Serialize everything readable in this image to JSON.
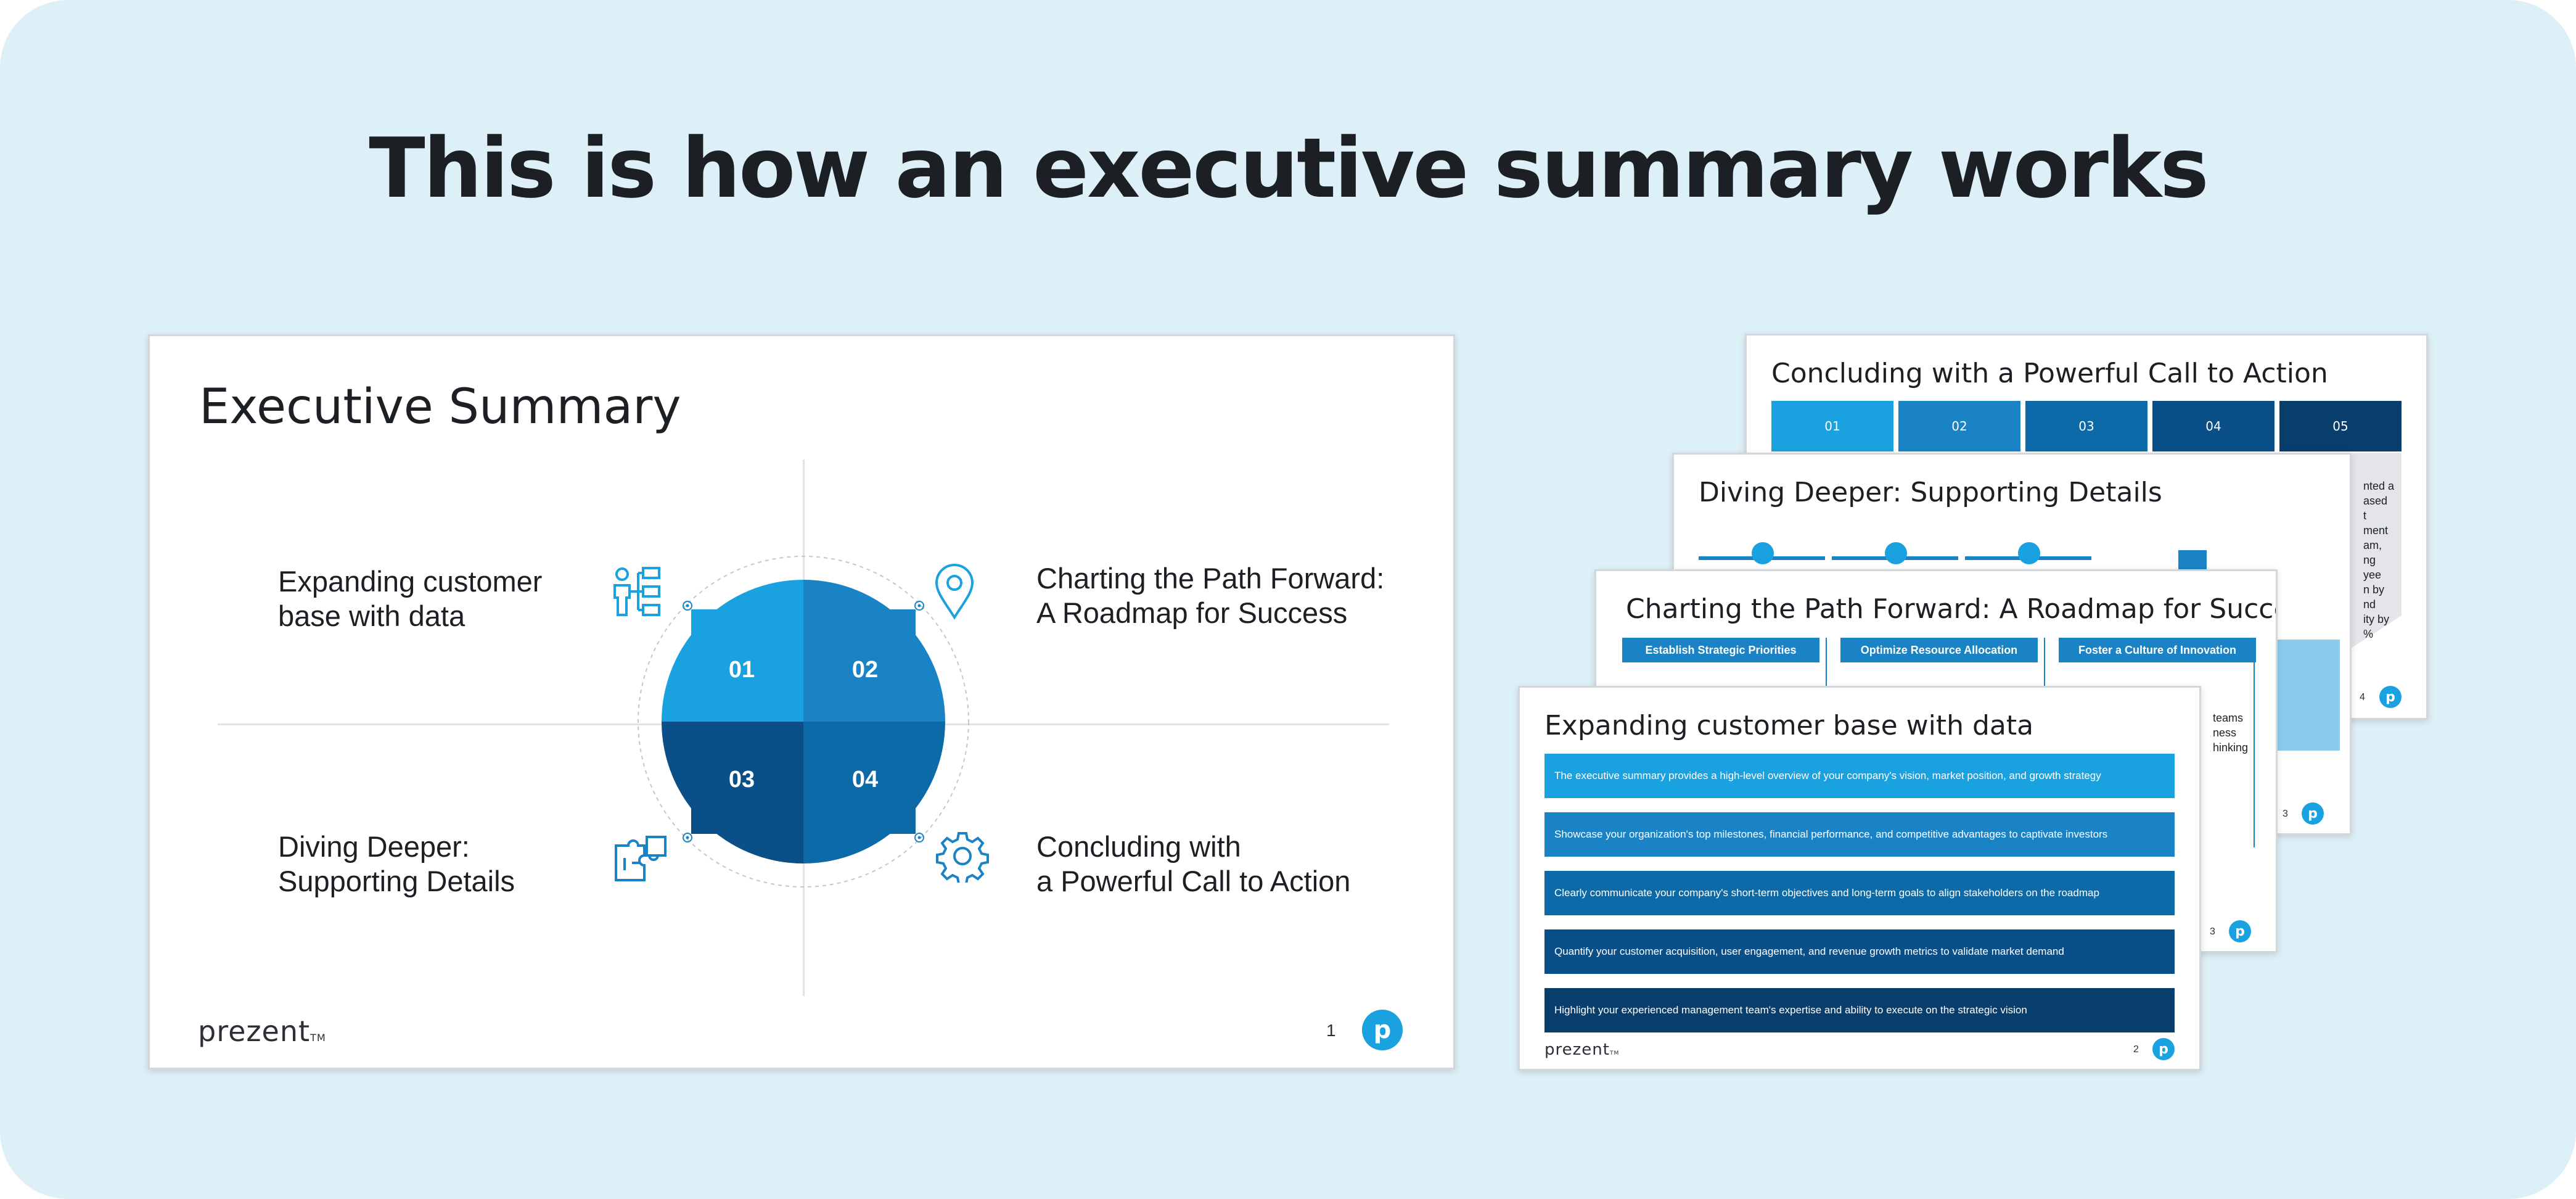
{
  "title": "This is how an executive summary works",
  "brand": {
    "logo": "prezent",
    "logo_tm": "TM",
    "badge_letter": "p"
  },
  "main_slide": {
    "title": "Executive Summary",
    "quadrants": [
      {
        "number": "01",
        "label": "Expanding customer\nbase with data",
        "icon": "org-chart-person-icon"
      },
      {
        "number": "02",
        "label": "Charting the Path Forward:\nA Roadmap for Success",
        "icon": "location-pin-icon"
      },
      {
        "number": "03",
        "label": "Diving Deeper:\nSupporting Details",
        "icon": "puzzle-pieces-icon"
      },
      {
        "number": "04",
        "label": "Concluding with\na Powerful Call to Action",
        "icon": "gear-icon"
      }
    ],
    "page_number": "1"
  },
  "slide_call_to_action": {
    "title": "Concluding with a Powerful Call to Action",
    "tiles": [
      "01",
      "02",
      "03",
      "04",
      "05"
    ],
    "text_fragment": "nted a\nased\nt\nment\nam,\nng\nyee\nn by\nnd\nity by\n%",
    "page_number": "4"
  },
  "slide_supporting_details": {
    "title": "Diving Deeper: Supporting Details",
    "page_number": "3"
  },
  "slide_roadmap": {
    "title": "Charting the Path Forward: A Roadmap for Success",
    "columns": [
      "Establish Strategic Priorities",
      "Optimize Resource Allocation",
      "Foster a Culture of Innovation"
    ],
    "text_fragment": "teams\nness\nhinking",
    "page_number": "3"
  },
  "slide_customer_base": {
    "title": "Expanding customer base with data",
    "rows": [
      "The executive summary provides a high-level overview of your company's vision, market position, and growth strategy",
      "Showcase your organization's top milestones, financial performance, and competitive advantages to captivate investors",
      "Clearly communicate your company's short-term objectives and long-term goals to align stakeholders on the roadmap",
      "Quantify your customer acquisition, user engagement, and revenue growth metrics to validate market demand",
      "Highlight your experienced management team's expertise and ability to execute on the strategic vision"
    ],
    "page_number": "2"
  },
  "colors": {
    "background": "#def0f7",
    "light_blue": "#1aa1df",
    "mid_blue": "#1a83c5",
    "deep_blue": "#0d6aa8",
    "navy": "#0a4f87",
    "dark_navy": "#083e6b"
  }
}
